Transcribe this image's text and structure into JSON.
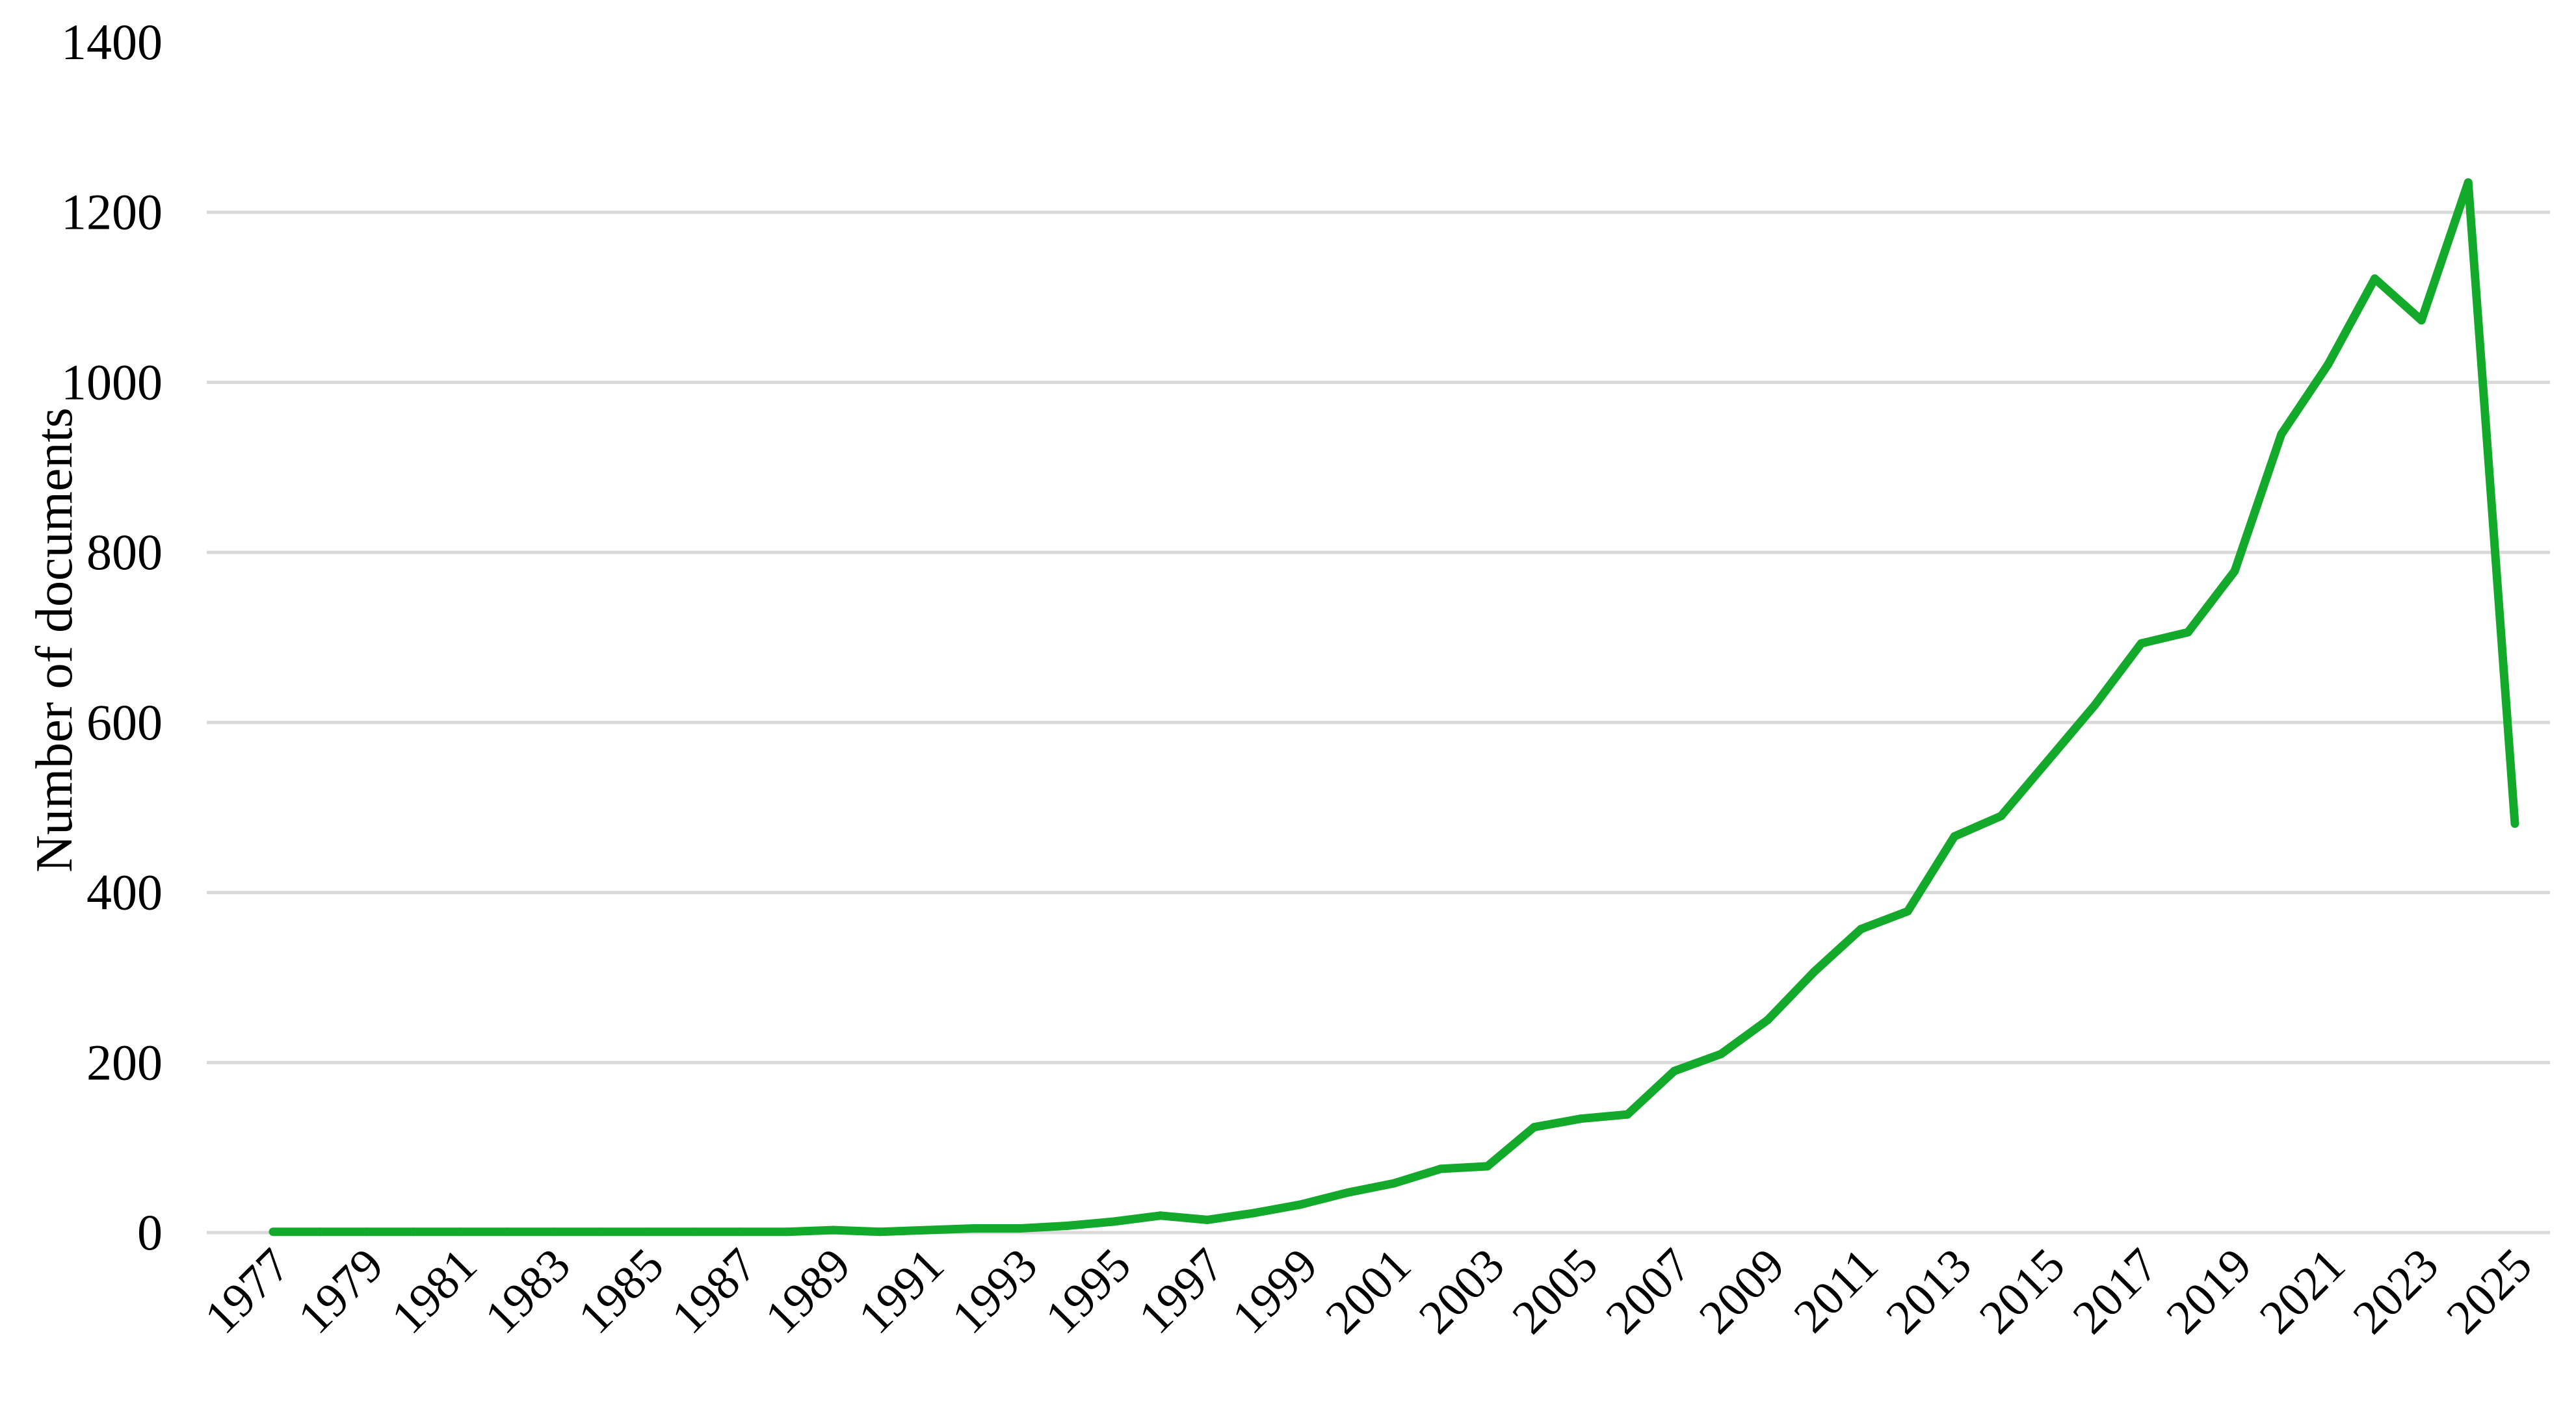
{
  "chart_data": {
    "type": "line",
    "title": "",
    "xlabel": "",
    "ylabel": "Number of documents",
    "ylim": [
      0,
      1400
    ],
    "yticks": [
      "0",
      "200",
      "400",
      "600",
      "800",
      "1000",
      "1200",
      "1400"
    ],
    "xticks": [
      "1977",
      "1979",
      "1981",
      "1983",
      "1985",
      "1987",
      "1989",
      "1991",
      "1993",
      "1995",
      "1997",
      "1999",
      "2001",
      "2003",
      "2005",
      "2007",
      "2009",
      "2011",
      "2013",
      "2015",
      "2017",
      "2019",
      "2021",
      "2023",
      "2025"
    ],
    "grid": true,
    "legend": "none",
    "series": [
      {
        "color": "#13a92a",
        "x": [
          1977,
          1978,
          1979,
          1980,
          1981,
          1982,
          1983,
          1984,
          1985,
          1986,
          1987,
          1988,
          1989,
          1990,
          1991,
          1992,
          1993,
          1994,
          1995,
          1996,
          1997,
          1998,
          1999,
          2000,
          2001,
          2002,
          2003,
          2004,
          2005,
          2006,
          2007,
          2008,
          2009,
          2010,
          2011,
          2012,
          2013,
          2014,
          2015,
          2016,
          2017,
          2018,
          2019,
          2020,
          2021,
          2022,
          2023,
          2024,
          2025
        ],
        "values": [
          1,
          1,
          1,
          1,
          1,
          1,
          1,
          1,
          1,
          1,
          1,
          1,
          3,
          1,
          3,
          5,
          5,
          8,
          13,
          20,
          15,
          23,
          33,
          47,
          58,
          75,
          78,
          124,
          134,
          139,
          190,
          210,
          250,
          307,
          357,
          378,
          466,
          490,
          555,
          620,
          693,
          706,
          778,
          939,
          1021,
          1122,
          1073,
          1235,
          481
        ]
      }
    ]
  }
}
